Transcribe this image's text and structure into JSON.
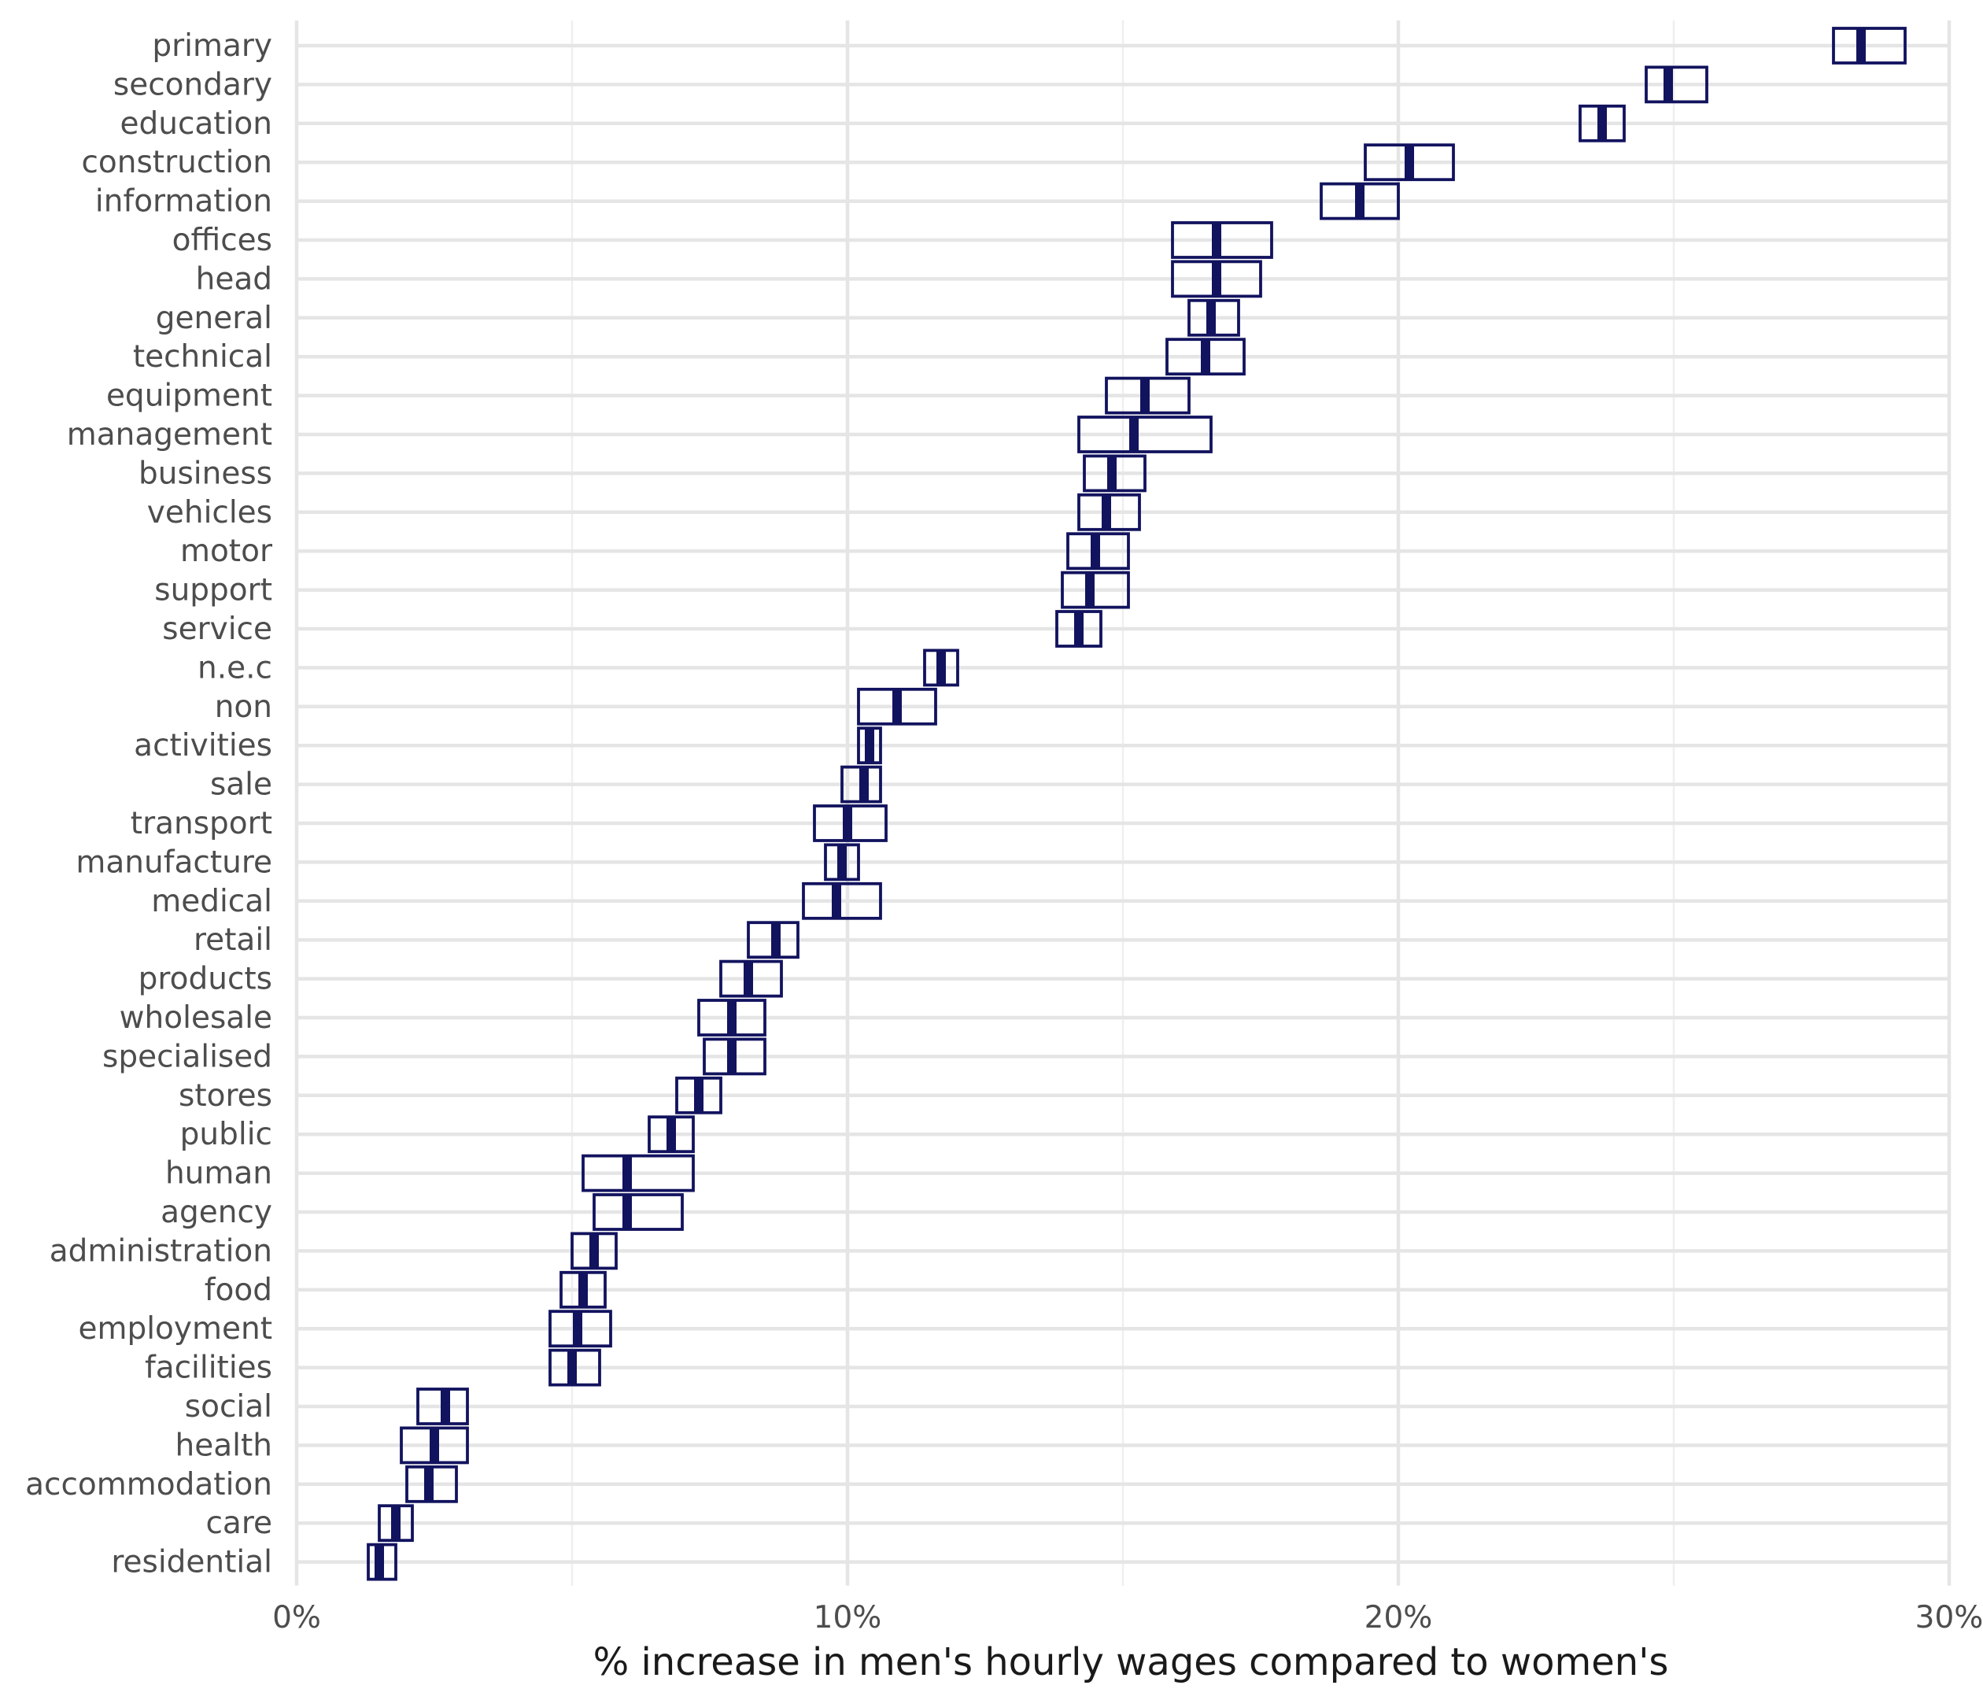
{
  "chart_data": {
    "type": "crossbar",
    "xlabel": "% increase in men's hourly wages compared to women's",
    "ylabel": "",
    "xlim": [
      0,
      30
    ],
    "x_ticks": [
      {
        "value": 0,
        "label": "0%"
      },
      {
        "value": 10,
        "label": "10%"
      },
      {
        "value": 20,
        "label": "20%"
      },
      {
        "value": 30,
        "label": "30%"
      }
    ],
    "grid": true,
    "color": "#12135e",
    "categories": [
      "primary",
      "secondary",
      "education",
      "construction",
      "information",
      "offices",
      "head",
      "general",
      "technical",
      "equipment",
      "management",
      "business",
      "vehicles",
      "motor",
      "support",
      "service",
      "n.e.c",
      "non",
      "activities",
      "sale",
      "transport",
      "manufacture",
      "medical",
      "retail",
      "products",
      "wholesale",
      "specialised",
      "stores",
      "public",
      "human",
      "agency",
      "administration",
      "food",
      "employment",
      "facilities",
      "social",
      "health",
      "accommodation",
      "care",
      "residential"
    ],
    "series": [
      {
        "category": "primary",
        "low": 27.9,
        "median": 28.4,
        "high": 29.2
      },
      {
        "category": "secondary",
        "low": 24.5,
        "median": 24.9,
        "high": 25.6
      },
      {
        "category": "education",
        "low": 23.3,
        "median": 23.7,
        "high": 24.1
      },
      {
        "category": "construction",
        "low": 19.4,
        "median": 20.2,
        "high": 21.0
      },
      {
        "category": "information",
        "low": 18.6,
        "median": 19.3,
        "high": 20.0
      },
      {
        "category": "offices",
        "low": 15.9,
        "median": 16.7,
        "high": 17.7
      },
      {
        "category": "head",
        "low": 15.9,
        "median": 16.7,
        "high": 17.5
      },
      {
        "category": "general",
        "low": 16.2,
        "median": 16.6,
        "high": 17.1
      },
      {
        "category": "technical",
        "low": 15.8,
        "median": 16.5,
        "high": 17.2
      },
      {
        "category": "equipment",
        "low": 14.7,
        "median": 15.4,
        "high": 16.2
      },
      {
        "category": "management",
        "low": 14.2,
        "median": 15.2,
        "high": 16.6
      },
      {
        "category": "business",
        "low": 14.3,
        "median": 14.8,
        "high": 15.4
      },
      {
        "category": "vehicles",
        "low": 14.2,
        "median": 14.7,
        "high": 15.3
      },
      {
        "category": "motor",
        "low": 14.0,
        "median": 14.5,
        "high": 15.1
      },
      {
        "category": "support",
        "low": 13.9,
        "median": 14.4,
        "high": 15.1
      },
      {
        "category": "service",
        "low": 13.8,
        "median": 14.2,
        "high": 14.6
      },
      {
        "category": "n.e.c",
        "low": 11.4,
        "median": 11.7,
        "high": 12.0
      },
      {
        "category": "non",
        "low": 10.2,
        "median": 10.9,
        "high": 11.6
      },
      {
        "category": "activities",
        "low": 10.2,
        "median": 10.4,
        "high": 10.6
      },
      {
        "category": "sale",
        "low": 9.9,
        "median": 10.3,
        "high": 10.6
      },
      {
        "category": "transport",
        "low": 9.4,
        "median": 10.0,
        "high": 10.7
      },
      {
        "category": "manufacture",
        "low": 9.6,
        "median": 9.9,
        "high": 10.2
      },
      {
        "category": "medical",
        "low": 9.2,
        "median": 9.8,
        "high": 10.6
      },
      {
        "category": "retail",
        "low": 8.2,
        "median": 8.7,
        "high": 9.1
      },
      {
        "category": "products",
        "low": 7.7,
        "median": 8.2,
        "high": 8.8
      },
      {
        "category": "wholesale",
        "low": 7.3,
        "median": 7.9,
        "high": 8.5
      },
      {
        "category": "specialised",
        "low": 7.4,
        "median": 7.9,
        "high": 8.5
      },
      {
        "category": "stores",
        "low": 6.9,
        "median": 7.3,
        "high": 7.7
      },
      {
        "category": "public",
        "low": 6.4,
        "median": 6.8,
        "high": 7.2
      },
      {
        "category": "human",
        "low": 5.2,
        "median": 6.0,
        "high": 7.2
      },
      {
        "category": "agency",
        "low": 5.4,
        "median": 6.0,
        "high": 7.0
      },
      {
        "category": "administration",
        "low": 5.0,
        "median": 5.4,
        "high": 5.8
      },
      {
        "category": "food",
        "low": 4.8,
        "median": 5.2,
        "high": 5.6
      },
      {
        "category": "employment",
        "low": 4.6,
        "median": 5.1,
        "high": 5.7
      },
      {
        "category": "facilities",
        "low": 4.6,
        "median": 5.0,
        "high": 5.5
      },
      {
        "category": "social",
        "low": 2.2,
        "median": 2.7,
        "high": 3.1
      },
      {
        "category": "health",
        "low": 1.9,
        "median": 2.5,
        "high": 3.1
      },
      {
        "category": "accommodation",
        "low": 2.0,
        "median": 2.4,
        "high": 2.9
      },
      {
        "category": "care",
        "low": 1.5,
        "median": 1.8,
        "high": 2.1
      },
      {
        "category": "residential",
        "low": 1.3,
        "median": 1.5,
        "high": 1.8
      }
    ]
  }
}
